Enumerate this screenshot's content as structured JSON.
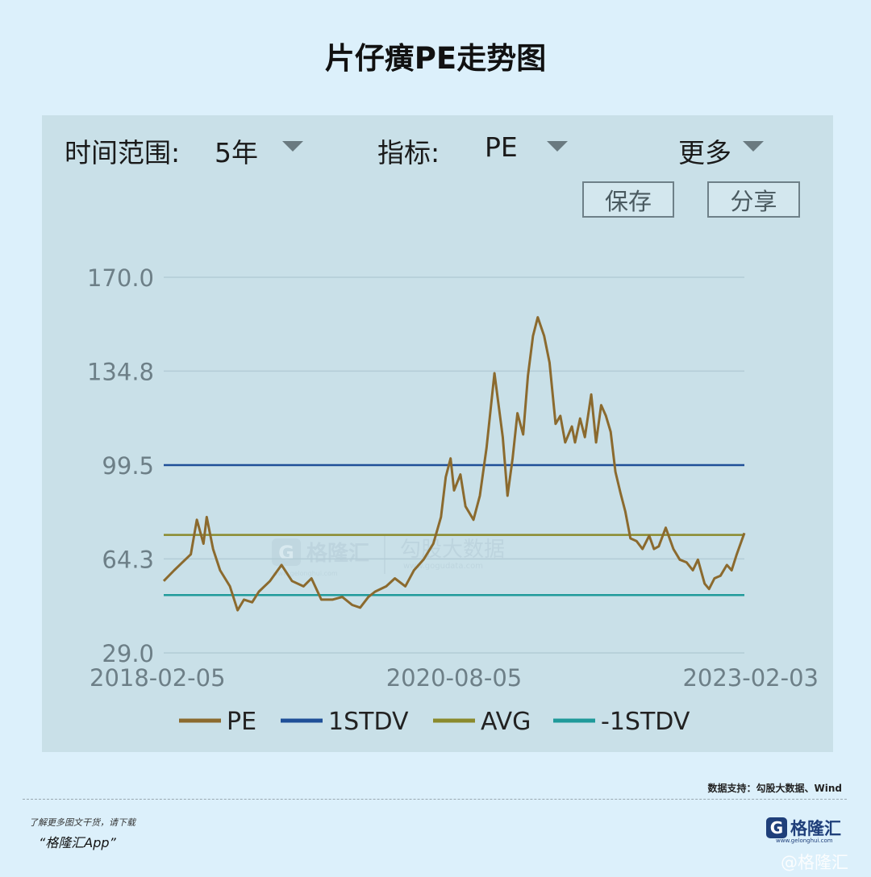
{
  "title": "片仔癀PE走势图",
  "controls": {
    "range_label": "时间范围:",
    "range_value": "5年",
    "metric_label": "指标:",
    "metric_value": "PE",
    "more_label": "更多",
    "save_label": "保存",
    "share_label": "分享"
  },
  "watermark": {
    "brand": "格隆汇",
    "brand_small": "www.gelonghui.com",
    "data": "勾股大数据",
    "data_small": "www.gogudata.com"
  },
  "chart_data": {
    "type": "line",
    "x_ticks": [
      "2018-02-05",
      "2020-08-05",
      "2023-02-03"
    ],
    "y_ticks": [
      "29.0",
      "64.3",
      "99.5",
      "134.8",
      "170.0"
    ],
    "ylim": [
      29.0,
      170.0
    ],
    "xlim": [
      "2018-02-05",
      "2023-02-03"
    ],
    "grid": true,
    "legend_position": "bottom",
    "series": [
      {
        "name": "PE",
        "color": "#8b6a2e",
        "x": [
          "2018-02-05",
          "2018-03-10",
          "2018-04-05",
          "2018-05-01",
          "2018-05-20",
          "2018-06-10",
          "2018-06-20",
          "2018-07-10",
          "2018-08-01",
          "2018-09-01",
          "2018-09-25",
          "2018-10-15",
          "2018-11-10",
          "2018-12-01",
          "2019-01-05",
          "2019-02-10",
          "2019-03-15",
          "2019-04-20",
          "2019-05-15",
          "2019-06-15",
          "2019-07-20",
          "2019-08-20",
          "2019-09-20",
          "2019-10-15",
          "2019-11-10",
          "2019-12-01",
          "2020-01-05",
          "2020-02-01",
          "2020-03-05",
          "2020-04-01",
          "2020-05-01",
          "2020-06-01",
          "2020-06-25",
          "2020-07-10",
          "2020-07-25",
          "2020-08-05",
          "2020-08-25",
          "2020-09-10",
          "2020-10-05",
          "2020-10-25",
          "2020-11-15",
          "2020-12-10",
          "2021-01-05",
          "2021-01-20",
          "2021-02-05",
          "2021-02-20",
          "2021-03-10",
          "2021-03-25",
          "2021-04-10",
          "2021-04-25",
          "2021-05-15",
          "2021-06-01",
          "2021-06-20",
          "2021-07-05",
          "2021-07-20",
          "2021-08-10",
          "2021-08-20",
          "2021-09-05",
          "2021-09-20",
          "2021-10-10",
          "2021-10-25",
          "2021-11-10",
          "2021-11-25",
          "2021-12-10",
          "2021-12-25",
          "2022-01-10",
          "2022-01-25",
          "2022-02-10",
          "2022-03-01",
          "2022-03-20",
          "2022-04-10",
          "2022-04-25",
          "2022-05-10",
          "2022-06-01",
          "2022-06-25",
          "2022-07-15",
          "2022-08-05",
          "2022-08-25",
          "2022-09-10",
          "2022-10-01",
          "2022-10-15",
          "2022-11-01",
          "2022-11-20",
          "2022-12-10",
          "2022-12-25",
          "2023-01-10",
          "2023-01-25",
          "2023-02-03"
        ],
        "y": [
          56.0,
          60.0,
          63.0,
          66.0,
          79.0,
          70.0,
          80.0,
          68.0,
          60.0,
          54.0,
          45.0,
          49.0,
          48.0,
          52.0,
          56.0,
          62.0,
          56.0,
          54.0,
          57.0,
          49.0,
          49.0,
          50.0,
          47.0,
          46.0,
          50.0,
          52.0,
          54.0,
          57.0,
          54.0,
          60.0,
          64.0,
          70.0,
          80.0,
          95.0,
          102.0,
          90.0,
          96.0,
          84.0,
          79.0,
          88.0,
          106.0,
          134.0,
          110.0,
          88.0,
          102.0,
          119.0,
          111.0,
          133.0,
          148.0,
          155.0,
          148.0,
          138.0,
          115.0,
          118.0,
          108.0,
          114.0,
          108.0,
          117.0,
          110.0,
          126.0,
          108.0,
          122.0,
          118.0,
          112.0,
          97.0,
          89.0,
          82.0,
          72.0,
          71.0,
          68.0,
          73.0,
          68.0,
          69.0,
          76.0,
          68.0,
          64.0,
          63.0,
          60.0,
          64.0,
          55.0,
          53.0,
          57.0,
          58.0,
          62.0,
          60.0,
          66.0,
          71.0,
          74.0
        ]
      },
      {
        "name": "1STDV",
        "color": "#1f4f98",
        "x": [
          "2018-02-05",
          "2023-02-03"
        ],
        "y": [
          99.5,
          99.5
        ]
      },
      {
        "name": "AVG",
        "color": "#8a8a2c",
        "x": [
          "2018-02-05",
          "2023-02-03"
        ],
        "y": [
          73.3,
          73.3
        ]
      },
      {
        "name": "-1STDV",
        "color": "#1f9a9a",
        "x": [
          "2018-02-05",
          "2023-02-03"
        ],
        "y": [
          50.7,
          50.7
        ]
      }
    ]
  },
  "source": "数据支持：勾股大数据、Wind",
  "footer": {
    "download_text": "了解更多图文干货，请下载",
    "app_name": "“格隆汇App”",
    "brand_name": "格隆汇",
    "brand_icon_letter": "G",
    "brand_site": "www.gelonghui.com",
    "corner_watermark": "@格隆汇"
  }
}
